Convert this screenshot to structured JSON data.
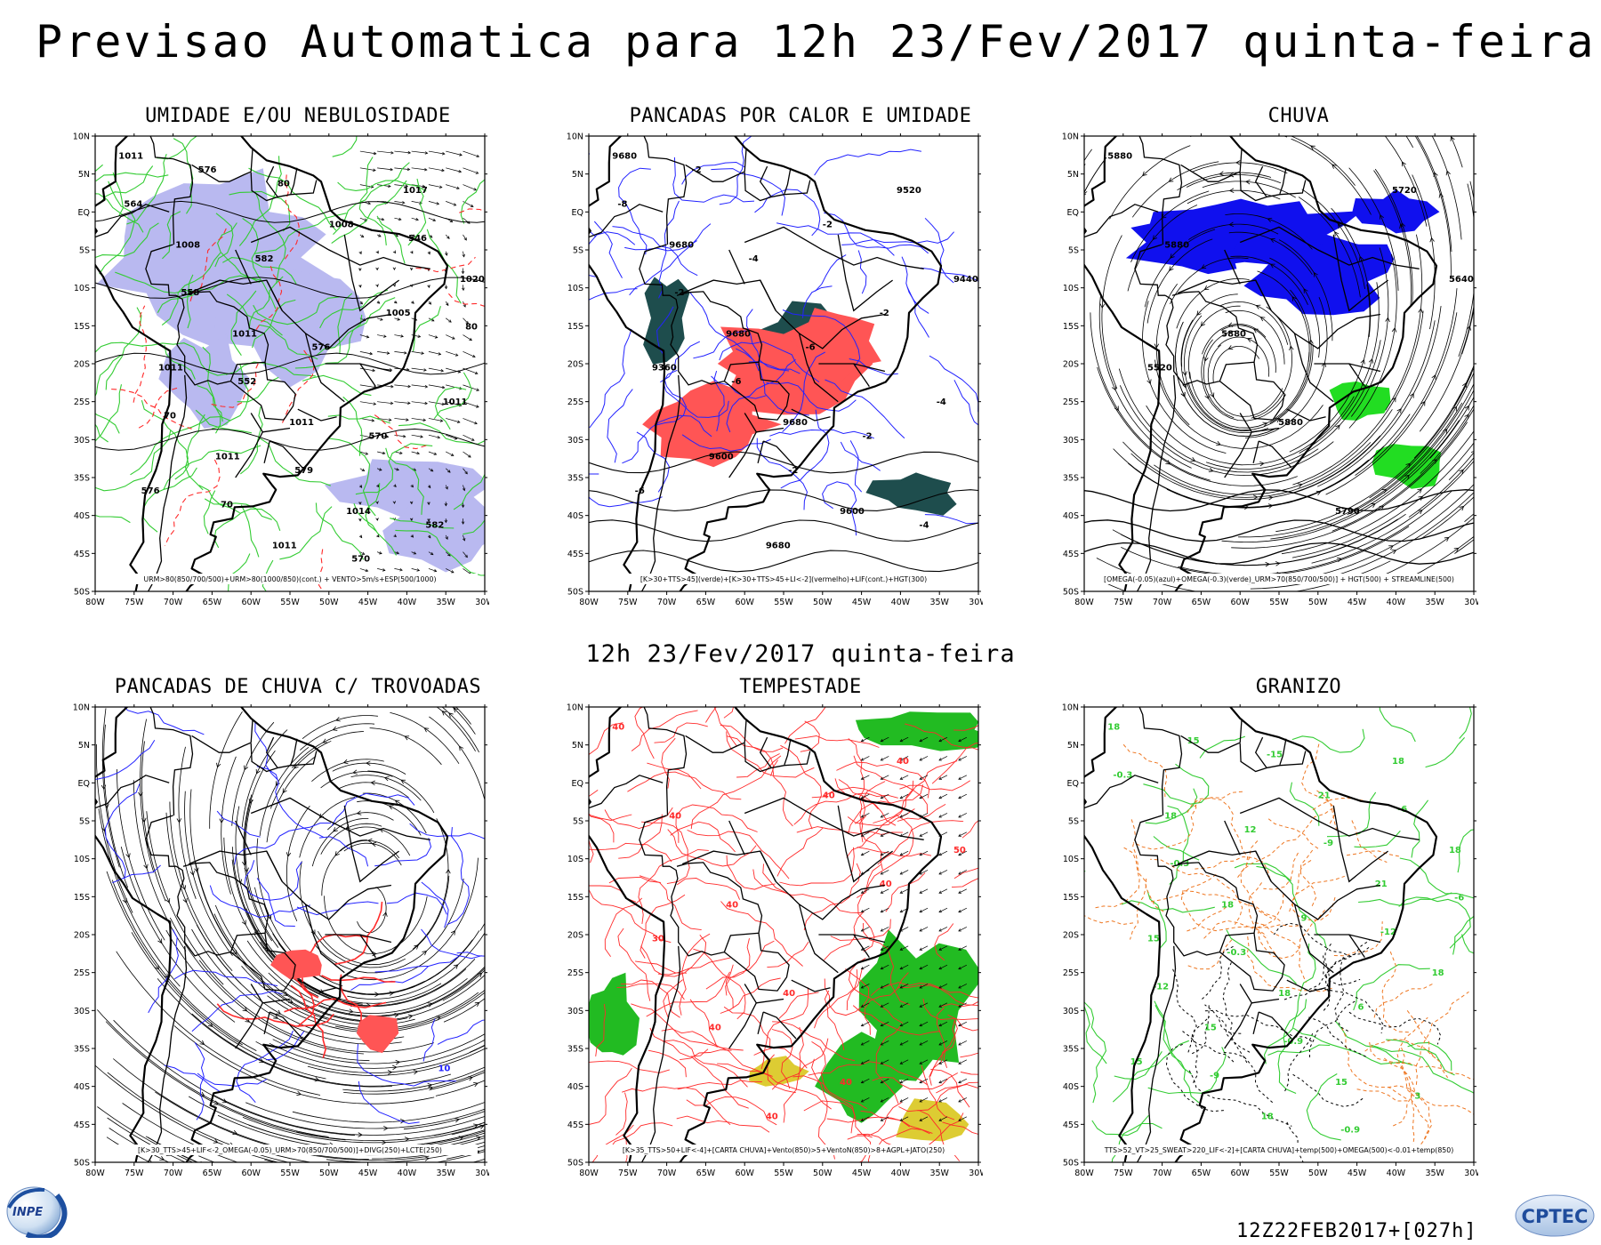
{
  "header": {
    "title": "Previsao Automatica  para 12h 23/Fev/2017 quinta-feira",
    "mid_date": "12h 23/Fev/2017 quinta-feira",
    "run_stamp": "12Z22FEB2017+[027h]"
  },
  "axes": {
    "lon_labels": [
      "80W",
      "75W",
      "70W",
      "65W",
      "60W",
      "55W",
      "50W",
      "45W",
      "40W",
      "35W",
      "30W"
    ],
    "lat_labels": [
      "10N",
      "5N",
      "EQ",
      "5S",
      "10S",
      "15S",
      "20S",
      "25S",
      "30S",
      "35S",
      "40S",
      "45S",
      "50S"
    ]
  },
  "panels": [
    {
      "id": "umidade",
      "title": "UMIDADE E/OU NEBULOSIDADE",
      "legend": "URM>80(850/700/500)+URM>80(1000/850)(cont.) + VENTO>5m/s+ESP(500/1000)",
      "labels": [
        "1011",
        "1008",
        "1011",
        "1011",
        "1014",
        "1017",
        "1020",
        "1011",
        "1011",
        "1011",
        "1008",
        "1005",
        "1011",
        "576",
        "576",
        "582",
        "576",
        "570",
        "582",
        "564",
        "558",
        "552",
        "579",
        "570",
        "546",
        "80",
        "70",
        "70",
        "80"
      ]
    },
    {
      "id": "pancadas-calor",
      "title": "PANCADAS POR CALOR E UMIDADE",
      "legend": "[K>30+TTS>45](verde)+[K>30+TTS>45+LI<-2](vermelho)+LIF(cont.)+HGT(300)",
      "labels": [
        "9680",
        "9680",
        "9680",
        "9680",
        "9600",
        "9520",
        "9440",
        "9360",
        "9600",
        "9680",
        "-2",
        "-2",
        "-4",
        "-6",
        "-2",
        "-4",
        "-6",
        "-2",
        "-4",
        "-8",
        "-2",
        "-6",
        "-2"
      ]
    },
    {
      "id": "chuva",
      "title": "CHUVA",
      "legend": "[OMEGA(-0.05)(azul)+OMEGA(-0.3)(verde)_URM>70(850/700/500)] + HGT(500) + STREAMLINE(500)",
      "labels": [
        "5880",
        "5880",
        "5880",
        "5880",
        "5790",
        "5720",
        "5640",
        "5520"
      ]
    },
    {
      "id": "pancadas-trovoadas",
      "title": "PANCADAS DE CHUVA C/ TROVOADAS",
      "legend": "[K>30_TTS>45+LIF<-2_OMEGA(-0.05)_URM>70(850/700/500)]+DIVG(250)+LCTE(250)",
      "labels": [
        "10"
      ]
    },
    {
      "id": "tempestade",
      "title": "TEMPESTADE",
      "legend": "[K>35_TTS>50+LIF<-4]+[CARTA CHUVA]+Vento(850)>5+VentoN(850)>8+AGPL+JATO(250)",
      "labels": [
        "40",
        "40",
        "40",
        "40",
        "40",
        "40",
        "50",
        "30",
        "40",
        "40",
        "40",
        "40"
      ]
    },
    {
      "id": "granizo",
      "title": "GRANIZO",
      "legend": "TTS>52_VT>25_SWEAT>220_LIF<-2]+[CARTA CHUVA]+temp(500)+OMEGA(500)<-0.01+temp(850)",
      "labels": [
        "18",
        "18",
        "18",
        "18",
        "15",
        "18",
        "18",
        "15",
        "15",
        "18",
        "21",
        "21",
        "18",
        "15",
        "15",
        "12",
        "9",
        "6",
        "3",
        "-0.3",
        "-0.3",
        "-0.3",
        "-0.9",
        "-0.9",
        "-6",
        "-6",
        "-12",
        "-9",
        "-15",
        "-9",
        "-12"
      ]
    }
  ],
  "logos": {
    "inpe": "INPE",
    "cptec": "CPTEC"
  },
  "colors": {
    "moist": "#b9b9f0",
    "green_contour": "#33cc33",
    "red_contour": "#ff2a2a",
    "blue_contour": "#2222ff",
    "dark_teal": "#1e4d4d",
    "red_fill": "#ff5555",
    "blue_fill": "#1010ee",
    "green_fill": "#22dd22",
    "green_storm": "#22bb22",
    "yellow_jet": "#ddcc33",
    "orange_contour": "#ee7722"
  }
}
